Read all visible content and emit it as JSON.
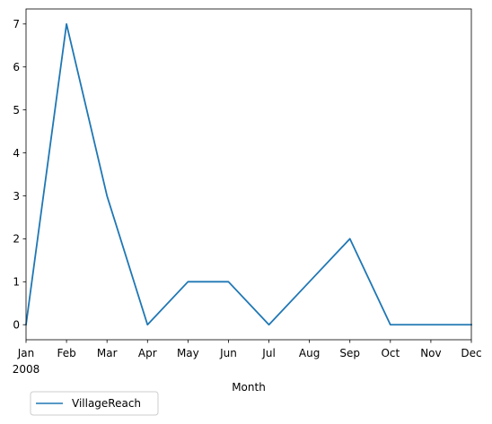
{
  "chart_data": {
    "type": "line",
    "categories": [
      "Jan",
      "Feb",
      "Mar",
      "Apr",
      "May",
      "Jun",
      "Jul",
      "Aug",
      "Sep",
      "Oct",
      "Nov",
      "Dec"
    ],
    "year_label": "2008",
    "series": [
      {
        "name": "VillageReach",
        "color": "#1f77b4",
        "values": [
          0,
          7,
          3,
          0,
          1,
          1,
          0,
          1,
          2,
          0,
          0,
          0
        ]
      }
    ],
    "xlabel": "Month",
    "ylabel": "",
    "ylim": [
      -0.35,
      7.35
    ],
    "yticks": [
      "0",
      "1",
      "2",
      "3",
      "4",
      "5",
      "6",
      "7"
    ],
    "grid": false,
    "legend_placement": "below-left"
  }
}
